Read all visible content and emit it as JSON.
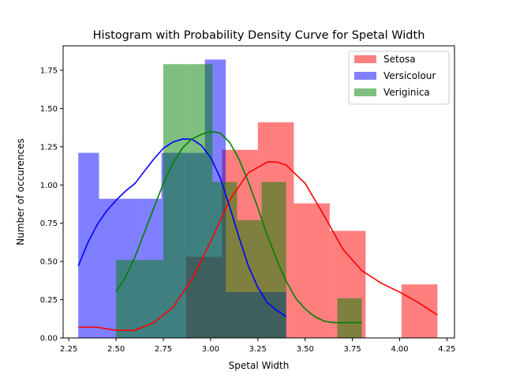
{
  "chart_data": {
    "type": "histogram",
    "title": "Histogram with Probability Density Curve for Spetal Width",
    "xlabel": "Spetal Width",
    "ylabel": "Number of occurences",
    "xlim": [
      2.22,
      4.29
    ],
    "ylim": [
      0.0,
      1.91
    ],
    "xticks": [
      "2.25",
      "2.50",
      "2.75",
      "3.00",
      "3.25",
      "3.50",
      "3.75",
      "4.00",
      "4.25"
    ],
    "xtick_values": [
      2.25,
      2.5,
      2.75,
      3.0,
      3.25,
      3.5,
      3.75,
      4.0,
      4.25
    ],
    "yticks": [
      "0.00",
      "0.25",
      "0.50",
      "0.75",
      "1.00",
      "1.25",
      "1.50",
      "1.75"
    ],
    "ytick_values": [
      0.0,
      0.25,
      0.5,
      0.75,
      1.0,
      1.25,
      1.5,
      1.75
    ],
    "legend_position": "top-right",
    "grid": false,
    "series": [
      {
        "name": "Setosa",
        "color": "#ff0000",
        "curve_color": "#ff0000",
        "bins": [
          {
            "x0": 2.3,
            "x1": 2.49,
            "h": 0.0
          },
          {
            "x0": 2.87,
            "x1": 3.06,
            "h": 0.53
          },
          {
            "x0": 3.06,
            "x1": 3.25,
            "h": 1.23
          },
          {
            "x0": 3.25,
            "x1": 3.44,
            "h": 1.41
          },
          {
            "x0": 3.44,
            "x1": 3.63,
            "h": 0.88
          },
          {
            "x0": 3.63,
            "x1": 3.82,
            "h": 0.7
          },
          {
            "x0": 4.01,
            "x1": 4.2,
            "h": 0.35
          }
        ],
        "density": [
          [
            2.3,
            0.07
          ],
          [
            2.4,
            0.07
          ],
          [
            2.5,
            0.05
          ],
          [
            2.6,
            0.05
          ],
          [
            2.7,
            0.1
          ],
          [
            2.8,
            0.2
          ],
          [
            2.9,
            0.38
          ],
          [
            3.0,
            0.63
          ],
          [
            3.1,
            0.9
          ],
          [
            3.2,
            1.08
          ],
          [
            3.3,
            1.15
          ],
          [
            3.35,
            1.15
          ],
          [
            3.4,
            1.13
          ],
          [
            3.5,
            1.01
          ],
          [
            3.6,
            0.8
          ],
          [
            3.7,
            0.58
          ],
          [
            3.8,
            0.44
          ],
          [
            3.9,
            0.36
          ],
          [
            4.0,
            0.3
          ],
          [
            4.1,
            0.23
          ],
          [
            4.2,
            0.15
          ]
        ]
      },
      {
        "name": "Versicolour",
        "color": "#0000ff",
        "curve_color": "#0000ff",
        "bins": [
          {
            "x0": 2.3,
            "x1": 2.41,
            "h": 1.21
          },
          {
            "x0": 2.41,
            "x1": 2.52,
            "h": 0.91
          },
          {
            "x0": 2.52,
            "x1": 2.63,
            "h": 0.91
          },
          {
            "x0": 2.63,
            "x1": 2.74,
            "h": 0.91
          },
          {
            "x0": 2.74,
            "x1": 2.86,
            "h": 1.21
          },
          {
            "x0": 2.86,
            "x1": 2.97,
            "h": 1.21
          },
          {
            "x0": 2.97,
            "x1": 3.08,
            "h": 1.82
          },
          {
            "x0": 3.08,
            "x1": 3.19,
            "h": 0.3
          },
          {
            "x0": 3.19,
            "x1": 3.3,
            "h": 0.3
          },
          {
            "x0": 3.3,
            "x1": 3.4,
            "h": 0.3
          }
        ],
        "density": [
          [
            2.3,
            0.47
          ],
          [
            2.35,
            0.62
          ],
          [
            2.4,
            0.74
          ],
          [
            2.45,
            0.83
          ],
          [
            2.5,
            0.9
          ],
          [
            2.55,
            0.96
          ],
          [
            2.6,
            1.01
          ],
          [
            2.65,
            1.09
          ],
          [
            2.7,
            1.17
          ],
          [
            2.75,
            1.24
          ],
          [
            2.8,
            1.28
          ],
          [
            2.85,
            1.3
          ],
          [
            2.9,
            1.3
          ],
          [
            2.95,
            1.26
          ],
          [
            3.0,
            1.18
          ],
          [
            3.05,
            1.05
          ],
          [
            3.1,
            0.86
          ],
          [
            3.15,
            0.66
          ],
          [
            3.2,
            0.47
          ],
          [
            3.25,
            0.33
          ],
          [
            3.3,
            0.23
          ],
          [
            3.35,
            0.18
          ],
          [
            3.4,
            0.14
          ]
        ]
      },
      {
        "name": "Veriginica",
        "color": "#008000",
        "curve_color": "#008000",
        "bins": [
          {
            "x0": 2.5,
            "x1": 2.63,
            "h": 0.51
          },
          {
            "x0": 2.63,
            "x1": 2.75,
            "h": 0.51
          },
          {
            "x0": 2.75,
            "x1": 2.88,
            "h": 1.79
          },
          {
            "x0": 2.88,
            "x1": 3.01,
            "h": 1.79
          },
          {
            "x0": 3.01,
            "x1": 3.14,
            "h": 1.02
          },
          {
            "x0": 3.14,
            "x1": 3.27,
            "h": 0.77
          },
          {
            "x0": 3.27,
            "x1": 3.4,
            "h": 1.02
          },
          {
            "x0": 3.67,
            "x1": 3.8,
            "h": 0.26
          }
        ],
        "density": [
          [
            2.5,
            0.3
          ],
          [
            2.55,
            0.4
          ],
          [
            2.6,
            0.53
          ],
          [
            2.65,
            0.69
          ],
          [
            2.7,
            0.85
          ],
          [
            2.75,
            1.01
          ],
          [
            2.8,
            1.14
          ],
          [
            2.85,
            1.24
          ],
          [
            2.9,
            1.3
          ],
          [
            2.95,
            1.33
          ],
          [
            3.0,
            1.35
          ],
          [
            3.05,
            1.34
          ],
          [
            3.1,
            1.28
          ],
          [
            3.15,
            1.17
          ],
          [
            3.2,
            1.02
          ],
          [
            3.25,
            0.85
          ],
          [
            3.3,
            0.67
          ],
          [
            3.35,
            0.51
          ],
          [
            3.4,
            0.37
          ],
          [
            3.45,
            0.26
          ],
          [
            3.5,
            0.19
          ],
          [
            3.55,
            0.14
          ],
          [
            3.6,
            0.11
          ],
          [
            3.65,
            0.1
          ],
          [
            3.7,
            0.1
          ],
          [
            3.75,
            0.1
          ],
          [
            3.8,
            0.1
          ]
        ]
      }
    ]
  }
}
